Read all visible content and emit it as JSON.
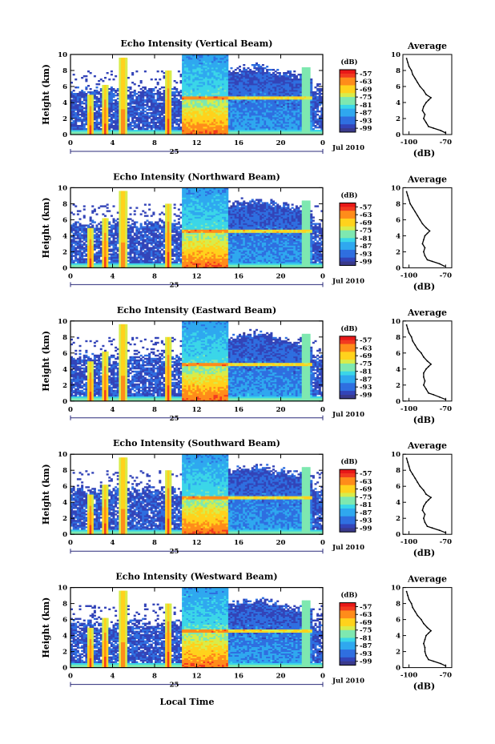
{
  "figure": {
    "xlabel_bottom": "Local Time",
    "date_label": "Jul 2010",
    "day_label": "25",
    "colorbar_unit": "(dB)",
    "profile_title": "Average",
    "profile_xlabel": "(dB)"
  },
  "chart_data": [
    {
      "type": "heatmap",
      "title": "Echo Intensity (Vertical Beam)",
      "ylabel": "Height (km)",
      "x_ticks": [
        "0",
        "4",
        "8",
        "12",
        "16",
        "20",
        "0"
      ],
      "y_ticks": [
        "0",
        "2",
        "4",
        "6",
        "8",
        "10"
      ],
      "xlim": [
        0,
        24
      ],
      "ylim": [
        0,
        10
      ],
      "colorbar_ticks": [
        "-57",
        "-63",
        "-69",
        "-75",
        "-81",
        "-87",
        "-93",
        "-99"
      ],
      "colorbar_range": [
        -102,
        -54
      ],
      "profile": {
        "title": "Average",
        "xlabel": "(dB)",
        "x_ticks": [
          "-100",
          "-70"
        ],
        "xlim": [
          -105,
          -65
        ],
        "y_ticks": [
          "0",
          "2",
          "4",
          "6",
          "8",
          "10"
        ],
        "ylim": [
          0,
          10
        ],
        "heights": [
          0.2,
          0.5,
          0.8,
          1.0,
          1.5,
          2.0,
          2.5,
          3.0,
          3.5,
          4.0,
          4.3,
          4.6,
          5.0,
          5.5,
          6.0,
          6.5,
          7.0,
          7.5,
          8.0,
          8.5,
          9.0,
          9.5
        ],
        "values": [
          -70,
          -74,
          -80,
          -84,
          -86,
          -88,
          -87,
          -89,
          -88,
          -86,
          -84,
          -82,
          -86,
          -88,
          -91,
          -93,
          -95,
          -97,
          -98,
          -100,
          -101,
          -102
        ]
      }
    },
    {
      "type": "heatmap",
      "title": "Echo Intensity (Northward Beam)",
      "ylabel": "Height (km)",
      "x_ticks": [
        "0",
        "4",
        "8",
        "12",
        "16",
        "20",
        "0"
      ],
      "y_ticks": [
        "0",
        "2",
        "4",
        "6",
        "8",
        "10"
      ],
      "xlim": [
        0,
        24
      ],
      "ylim": [
        0,
        10
      ],
      "colorbar_ticks": [
        "-57",
        "-63",
        "-69",
        "-75",
        "-81",
        "-87",
        "-93",
        "-99"
      ],
      "colorbar_range": [
        -102,
        -54
      ],
      "profile": {
        "title": "Average",
        "xlabel": "(dB)",
        "x_ticks": [
          "-100",
          "-70"
        ],
        "xlim": [
          -105,
          -65
        ],
        "y_ticks": [
          "0",
          "2",
          "4",
          "6",
          "8",
          "10"
        ],
        "ylim": [
          0,
          10
        ],
        "heights": [
          0.2,
          0.5,
          0.8,
          1.0,
          1.5,
          2.0,
          2.5,
          3.0,
          3.5,
          4.0,
          4.3,
          4.6,
          5.0,
          5.5,
          6.0,
          6.5,
          7.0,
          7.5,
          8.0,
          8.5,
          9.0,
          9.5
        ],
        "values": [
          -71,
          -75,
          -81,
          -85,
          -87,
          -88,
          -87,
          -89,
          -88,
          -87,
          -85,
          -83,
          -86,
          -89,
          -91,
          -93,
          -95,
          -97,
          -99,
          -100,
          -101,
          -102
        ]
      }
    },
    {
      "type": "heatmap",
      "title": "Echo Intensity (Eastward Beam)",
      "ylabel": "Height (km)",
      "x_ticks": [
        "0",
        "4",
        "8",
        "12",
        "16",
        "20",
        "0"
      ],
      "y_ticks": [
        "0",
        "2",
        "4",
        "6",
        "8",
        "10"
      ],
      "xlim": [
        0,
        24
      ],
      "ylim": [
        0,
        10
      ],
      "colorbar_ticks": [
        "-57",
        "-63",
        "-69",
        "-75",
        "-81",
        "-87",
        "-93",
        "-99"
      ],
      "colorbar_range": [
        -102,
        -54
      ],
      "profile": {
        "title": "Average",
        "xlabel": "(dB)",
        "x_ticks": [
          "-100",
          "-70"
        ],
        "xlim": [
          -105,
          -65
        ],
        "y_ticks": [
          "0",
          "2",
          "4",
          "6",
          "8",
          "10"
        ],
        "ylim": [
          0,
          10
        ],
        "heights": [
          0.2,
          0.5,
          0.8,
          1.0,
          1.5,
          2.0,
          2.5,
          3.0,
          3.5,
          4.0,
          4.3,
          4.6,
          5.0,
          5.5,
          6.0,
          6.5,
          7.0,
          7.5,
          8.0,
          8.5,
          9.0,
          9.5
        ],
        "values": [
          -70,
          -75,
          -80,
          -84,
          -86,
          -88,
          -87,
          -88,
          -88,
          -86,
          -84,
          -82,
          -85,
          -88,
          -90,
          -93,
          -95,
          -97,
          -98,
          -100,
          -101,
          -102
        ]
      }
    },
    {
      "type": "heatmap",
      "title": "Echo Intensity (Southward Beam)",
      "ylabel": "Height (km)",
      "x_ticks": [
        "0",
        "4",
        "8",
        "12",
        "16",
        "20",
        "0"
      ],
      "y_ticks": [
        "0",
        "2",
        "4",
        "6",
        "8",
        "10"
      ],
      "xlim": [
        0,
        24
      ],
      "ylim": [
        0,
        10
      ],
      "colorbar_ticks": [
        "-57",
        "-63",
        "-69",
        "-75",
        "-81",
        "-87",
        "-93",
        "-99"
      ],
      "colorbar_range": [
        -102,
        -54
      ],
      "profile": {
        "title": "Average",
        "xlabel": "(dB)",
        "x_ticks": [
          "-100",
          "-70"
        ],
        "xlim": [
          -105,
          -65
        ],
        "y_ticks": [
          "0",
          "2",
          "4",
          "6",
          "8",
          "10"
        ],
        "ylim": [
          0,
          10
        ],
        "heights": [
          0.2,
          0.5,
          0.8,
          1.0,
          1.5,
          2.0,
          2.5,
          3.0,
          3.5,
          4.0,
          4.3,
          4.6,
          5.0,
          5.5,
          6.0,
          6.5,
          7.0,
          7.5,
          8.0,
          8.5,
          9.0,
          9.5
        ],
        "values": [
          -70,
          -75,
          -81,
          -85,
          -87,
          -88,
          -87,
          -89,
          -88,
          -86,
          -84,
          -82,
          -86,
          -88,
          -91,
          -93,
          -95,
          -97,
          -99,
          -100,
          -101,
          -102
        ]
      }
    },
    {
      "type": "heatmap",
      "title": "Echo Intensity (Westward Beam)",
      "ylabel": "Height (km)",
      "x_ticks": [
        "0",
        "4",
        "8",
        "12",
        "16",
        "20",
        "0"
      ],
      "y_ticks": [
        "0",
        "2",
        "4",
        "6",
        "8",
        "10"
      ],
      "xlim": [
        0,
        24
      ],
      "ylim": [
        0,
        10
      ],
      "colorbar_ticks": [
        "-57",
        "-63",
        "-69",
        "-75",
        "-81",
        "-87",
        "-93",
        "-99"
      ],
      "colorbar_range": [
        -102,
        -54
      ],
      "profile": {
        "title": "Average",
        "xlabel": "(dB)",
        "x_ticks": [
          "-100",
          "-70"
        ],
        "xlim": [
          -105,
          -65
        ],
        "y_ticks": [
          "0",
          "2",
          "4",
          "6",
          "8",
          "10"
        ],
        "ylim": [
          0,
          10
        ],
        "heights": [
          0.2,
          0.5,
          0.8,
          1.0,
          1.5,
          2.0,
          2.5,
          3.0,
          3.5,
          4.0,
          4.3,
          4.6,
          5.0,
          5.5,
          6.0,
          6.5,
          7.0,
          7.5,
          8.0,
          8.5,
          9.0,
          9.5
        ],
        "values": [
          -70,
          -74,
          -80,
          -84,
          -86,
          -87,
          -87,
          -88,
          -87,
          -86,
          -84,
          -82,
          -85,
          -88,
          -90,
          -93,
          -95,
          -97,
          -98,
          -100,
          -101,
          -102
        ]
      }
    }
  ]
}
